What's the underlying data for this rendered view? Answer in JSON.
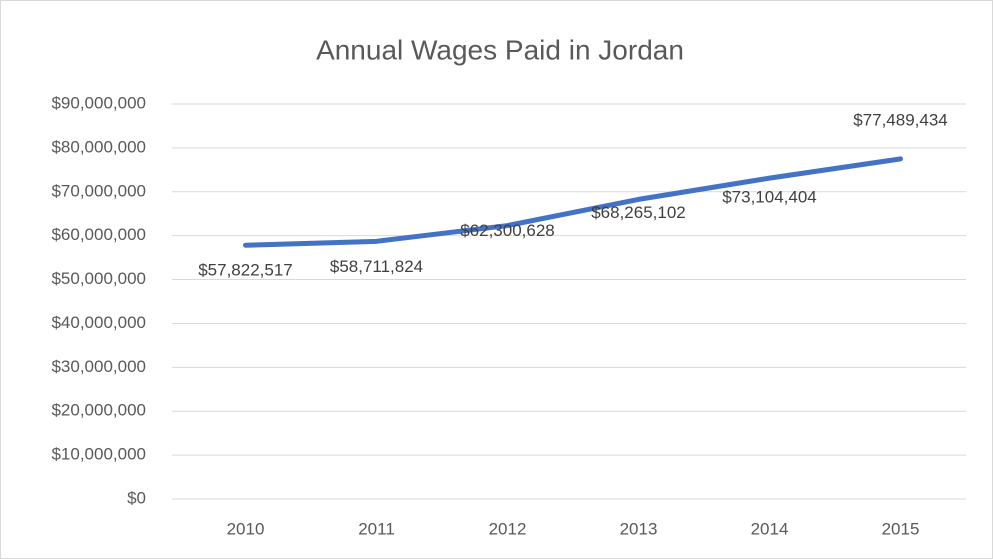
{
  "chart_data": {
    "type": "line",
    "title": "Annual Wages Paid in Jordan",
    "categories": [
      "2010",
      "2011",
      "2012",
      "2013",
      "2014",
      "2015"
    ],
    "series": [
      {
        "name": "Annual Wages",
        "color": "#4472c4",
        "values": [
          57822517,
          58711824,
          62300628,
          68265102,
          73104404,
          77489434
        ],
        "value_labels": [
          "$57,822,517",
          "$58,711,824",
          "$62,300,628",
          "$68,265,102",
          "$73,104,404",
          "$77,489,434"
        ]
      }
    ],
    "ylim": [
      0,
      90000000
    ],
    "yticks": [
      {
        "value": 0,
        "label": "$0"
      },
      {
        "value": 10000000,
        "label": "$10,000,000"
      },
      {
        "value": 20000000,
        "label": "$20,000,000"
      },
      {
        "value": 30000000,
        "label": "$30,000,000"
      },
      {
        "value": 40000000,
        "label": "$40,000,000"
      },
      {
        "value": 50000000,
        "label": "$50,000,000"
      },
      {
        "value": 60000000,
        "label": "$60,000,000"
      },
      {
        "value": 70000000,
        "label": "$70,000,000"
      },
      {
        "value": 80000000,
        "label": "$80,000,000"
      },
      {
        "value": 90000000,
        "label": "$90,000,000"
      }
    ],
    "grid": true
  }
}
